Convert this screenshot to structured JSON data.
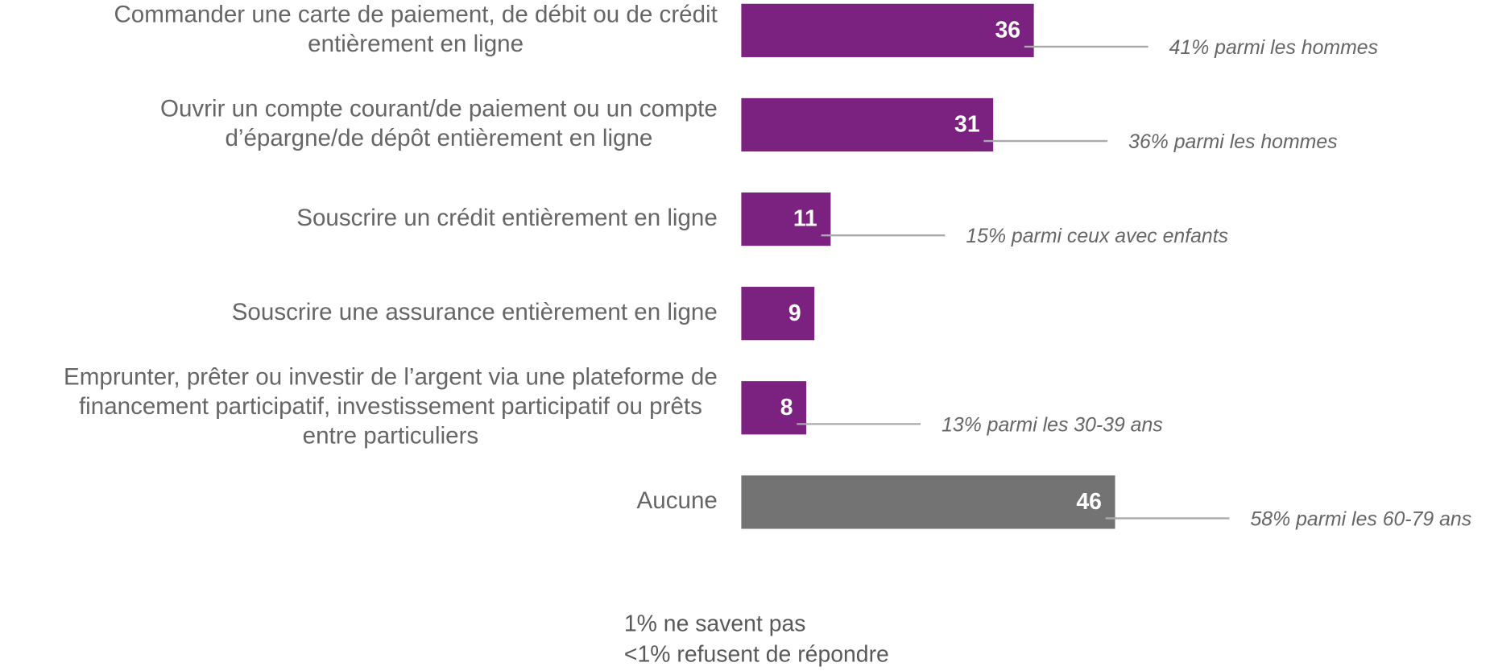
{
  "chart_data": {
    "type": "bar",
    "orientation": "horizontal",
    "categories": [
      [
        "Commander une carte de paiement, de débit ou de crédit",
        "entièrement en ligne"
      ],
      [
        "Ouvrir un compte courant/de paiement ou un compte",
        "d’épargne/de dépôt entièrement en ligne"
      ],
      [
        "Souscrire un crédit entièrement en ligne"
      ],
      [
        "Souscrire une assurance entièrement en ligne"
      ],
      [
        "Emprunter, prêter ou investir de l’argent via une plateforme de",
        "financement participatif, investissement participatif ou prêts",
        "entre particuliers"
      ],
      [
        "Aucune"
      ]
    ],
    "values": [
      36,
      31,
      11,
      9,
      8,
      46
    ],
    "colors": [
      "#7b2180",
      "#7b2180",
      "#7b2180",
      "#7b2180",
      "#7b2180",
      "#737373"
    ],
    "annotations": [
      "41% parmi les hommes",
      "36% parmi les hommes",
      "15% parmi ceux avec enfants",
      null,
      "13% parmi les 30-39 ans",
      "58% parmi les 60-79 ans"
    ],
    "footnotes": [
      "1% ne savent pas",
      "<1% refusent de répondre"
    ]
  }
}
